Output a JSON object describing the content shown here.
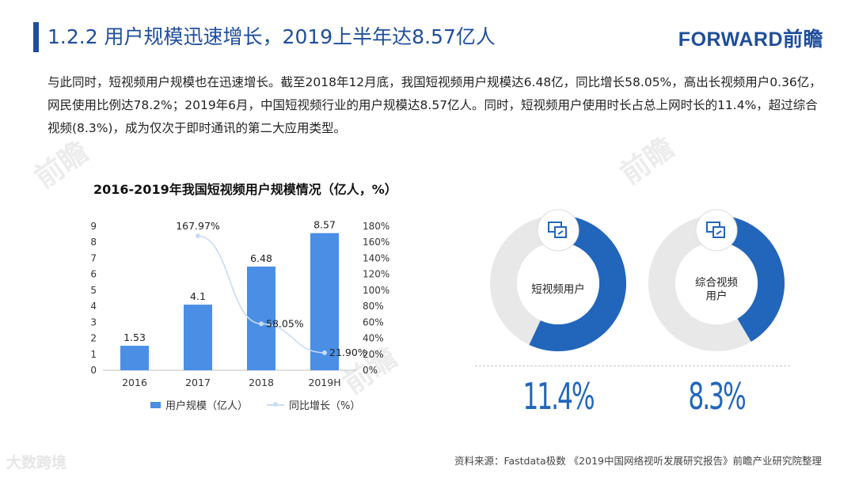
{
  "header": {
    "title": "1.2.2 用户规模迅速增长，2019上半年达8.57亿人",
    "logo": "FORWARD前瞻"
  },
  "paragraph": "与此同时，短视频用户规模也在迅速增长。截至2018年12月底，我国短视频用户规模达6.48亿，同比增长58.05%，高出长视频用户0.36亿，网民使用比例达78.2%；2019年6月，中国短视频行业的用户规模达8.57亿人。同时，短视频用户使用时长占总上网时长的11.4%，超过综合视频(8.3%)，成为仅次于即时通讯的第二大应用类型。",
  "chart_data": [
    {
      "type": "bar",
      "title": "2016-2019年我国短视频用户规模情况（亿人，%）",
      "categories": [
        "2016",
        "2017",
        "2018",
        "2019H"
      ],
      "series": [
        {
          "name": "用户规模（亿人）",
          "type": "bar",
          "axis": "left",
          "values": [
            1.53,
            4.1,
            6.48,
            8.57
          ],
          "labels": [
            "1.53",
            "4.1",
            "6.48",
            "8.57"
          ]
        },
        {
          "name": "同比增长（%）",
          "type": "line",
          "axis": "right",
          "values": [
            null,
            167.97,
            58.05,
            21.9
          ],
          "labels": [
            "",
            "167.97%",
            "58.05%",
            "21.90%"
          ]
        }
      ],
      "y_left": {
        "min": 0,
        "max": 9,
        "ticks": [
          "0",
          "1",
          "2",
          "3",
          "4",
          "5",
          "6",
          "7",
          "8",
          "9"
        ]
      },
      "y_right": {
        "min": 0,
        "max": 180,
        "ticks": [
          "0%",
          "20%",
          "40%",
          "60%",
          "80%",
          "100%",
          "120%",
          "140%",
          "160%",
          "180%"
        ]
      },
      "legend": "bottom",
      "grid": false,
      "colors": {
        "bar": "#4a8ee6",
        "line": "#c9dbf3"
      }
    },
    {
      "type": "pie",
      "label": "短视频用户",
      "value": 11.4,
      "value_label": "11.4%",
      "color": "#2266bb"
    },
    {
      "type": "pie",
      "label": "综合视频用户",
      "label_lines": [
        "综合视频",
        "用户"
      ],
      "value": 8.3,
      "value_label": "8.3%",
      "color": "#2266bb"
    }
  ],
  "footer": {
    "source": "资料来源：Fastdata极数 《2019中国网络视听发展研究报告》前瞻产业研究院整理",
    "brand": "大数跨境"
  },
  "colors": {
    "primary": "#1f4e9c",
    "bar": "#4a8ee6",
    "donut": "#2266bb",
    "track": "#e8e8e8"
  }
}
